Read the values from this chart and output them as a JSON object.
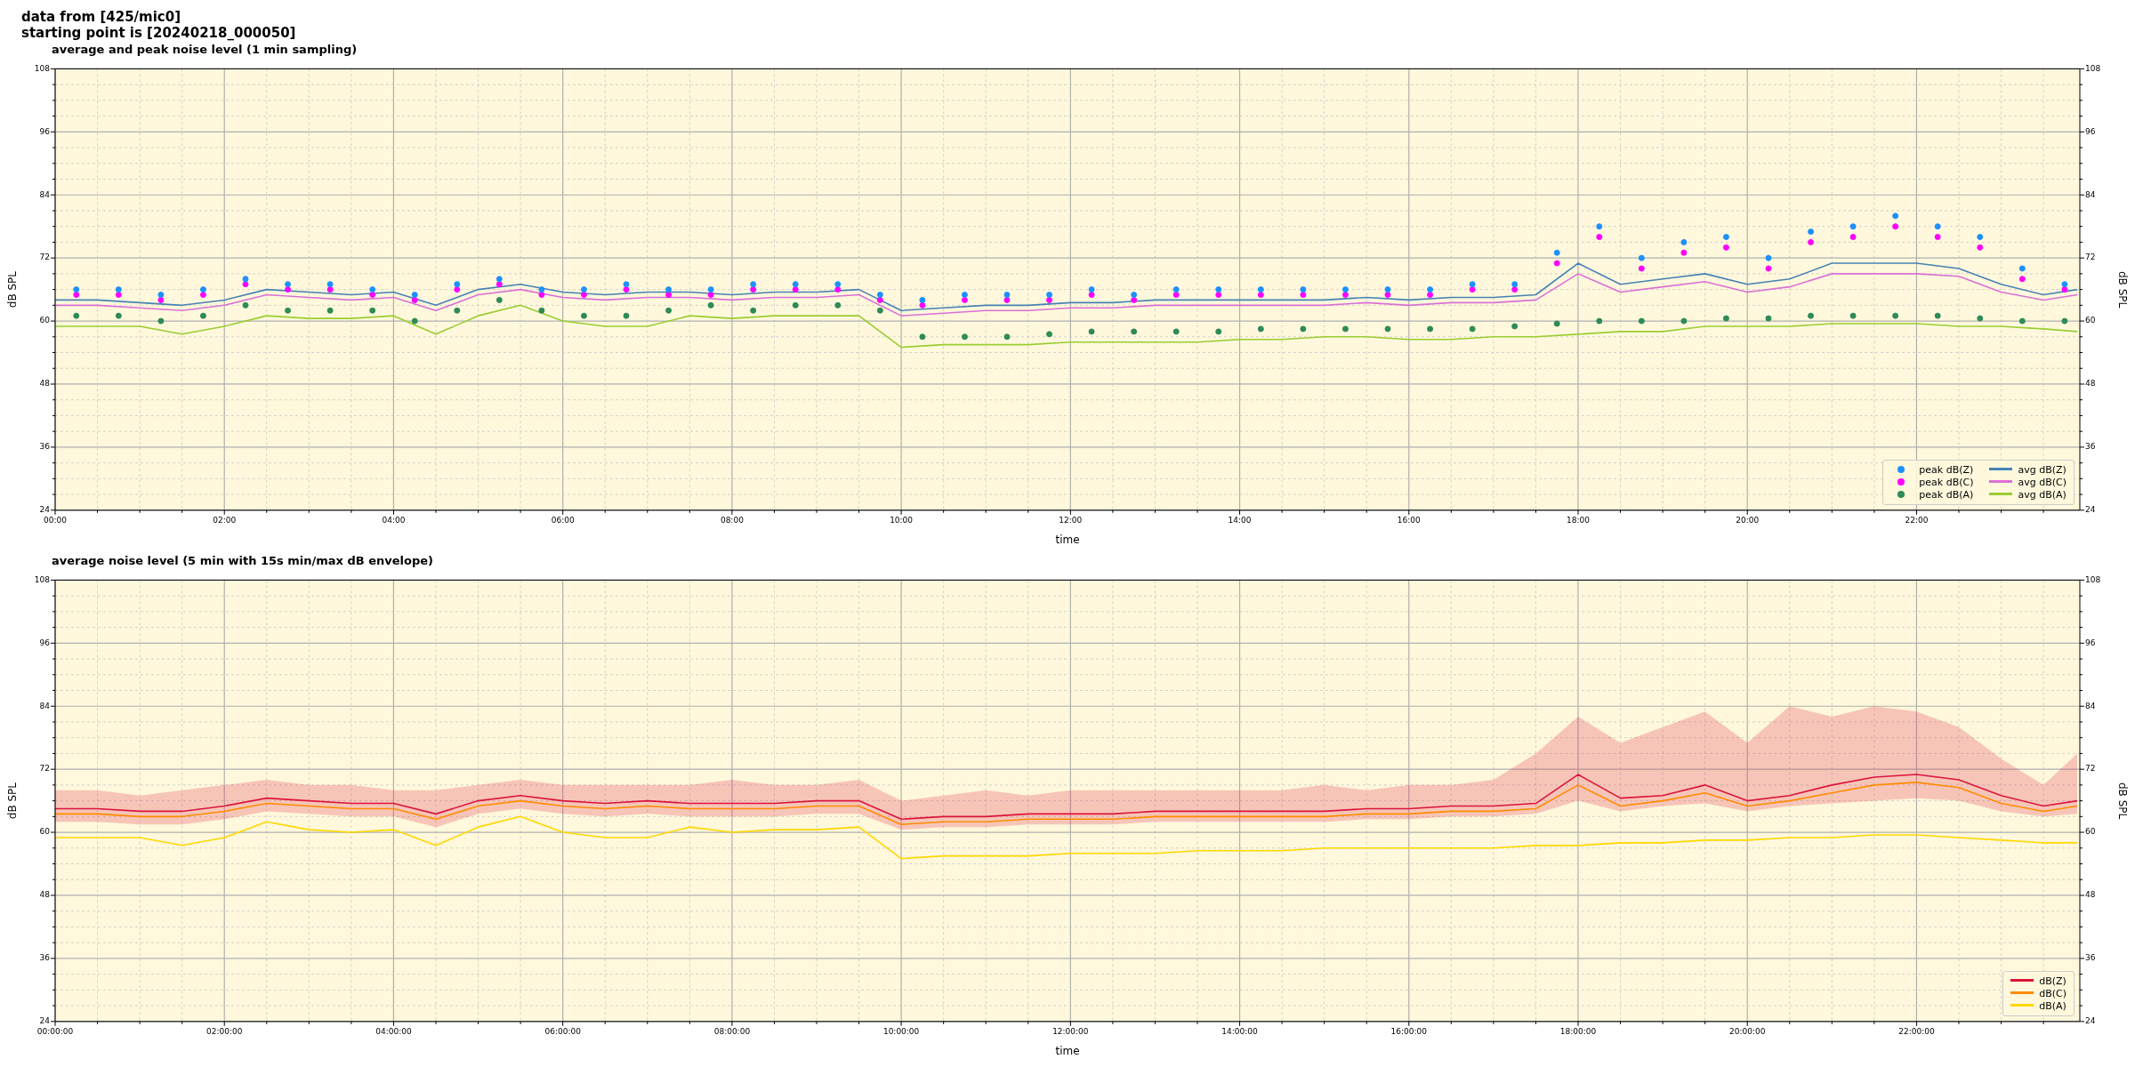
{
  "chart_data": [
    {
      "type": "scatter",
      "title": "average and peak noise level (1 min sampling)",
      "annotations": [
        "data from [425/mic0]",
        "starting point is [20240218_000050]"
      ],
      "xlabel": "time",
      "ylabel": "dB SPL",
      "y2label": "dB SPL",
      "xlim": [
        0,
        23.93
      ],
      "ylim": [
        24,
        108
      ],
      "y2lim": [
        24,
        108
      ],
      "xticks": [
        {
          "value": 0,
          "label": "00:00"
        },
        {
          "value": 0.5,
          "label": null
        },
        {
          "value": 1,
          "label": null
        },
        {
          "value": 1.5,
          "label": null
        },
        {
          "value": 2,
          "label": "02:00"
        },
        {
          "value": 2.5,
          "label": null
        },
        {
          "value": 3,
          "label": null
        },
        {
          "value": 3.5,
          "label": null
        },
        {
          "value": 4,
          "label": "04:00"
        },
        {
          "value": 4.5,
          "label": null
        },
        {
          "value": 5,
          "label": null
        },
        {
          "value": 5.5,
          "label": null
        },
        {
          "value": 6,
          "label": "06:00"
        },
        {
          "value": 6.5,
          "label": null
        },
        {
          "value": 7,
          "label": null
        },
        {
          "value": 7.5,
          "label": null
        },
        {
          "value": 8,
          "label": "08:00"
        },
        {
          "value": 8.5,
          "label": null
        },
        {
          "value": 9,
          "label": null
        },
        {
          "value": 9.5,
          "label": null
        },
        {
          "value": 10,
          "label": "10:00"
        },
        {
          "value": 10.5,
          "label": null
        },
        {
          "value": 11,
          "label": null
        },
        {
          "value": 11.5,
          "label": null
        },
        {
          "value": 12,
          "label": "12:00"
        },
        {
          "value": 12.5,
          "label": null
        },
        {
          "value": 13,
          "label": null
        },
        {
          "value": 13.5,
          "label": null
        },
        {
          "value": 14,
          "label": "14:00"
        },
        {
          "value": 14.5,
          "label": null
        },
        {
          "value": 15,
          "label": null
        },
        {
          "value": 15.5,
          "label": null
        },
        {
          "value": 16,
          "label": "16:00"
        },
        {
          "value": 16.5,
          "label": null
        },
        {
          "value": 17,
          "label": null
        },
        {
          "value": 17.5,
          "label": null
        },
        {
          "value": 18,
          "label": "18:00"
        },
        {
          "value": 18.5,
          "label": null
        },
        {
          "value": 19,
          "label": null
        },
        {
          "value": 19.5,
          "label": null
        },
        {
          "value": 20,
          "label": "20:00"
        },
        {
          "value": 20.5,
          "label": null
        },
        {
          "value": 21,
          "label": null
        },
        {
          "value": 21.5,
          "label": null
        },
        {
          "value": 22,
          "label": "22:00"
        },
        {
          "value": 22.5,
          "label": null
        },
        {
          "value": 23,
          "label": null
        },
        {
          "value": 23.5,
          "label": null
        }
      ],
      "yticks": [
        24,
        {
          "value": 27,
          "label": null
        },
        {
          "value": 30,
          "label": null
        },
        {
          "value": 33,
          "label": null
        },
        36,
        {
          "value": 39,
          "label": null
        },
        {
          "value": 42,
          "label": null
        },
        {
          "value": 45,
          "label": null
        },
        48,
        {
          "value": 51,
          "label": null
        },
        {
          "value": 54,
          "label": null
        },
        {
          "value": 57,
          "label": null
        },
        60,
        {
          "value": 63,
          "label": null
        },
        {
          "value": 66,
          "label": null
        },
        {
          "value": 69,
          "label": null
        },
        72,
        {
          "value": 75,
          "label": null
        },
        {
          "value": 78,
          "label": null
        },
        {
          "value": 81,
          "label": null
        },
        84,
        {
          "value": 87,
          "label": null
        },
        {
          "value": 90,
          "label": null
        },
        {
          "value": 93,
          "label": null
        },
        96,
        {
          "value": 99,
          "label": null
        },
        {
          "value": 102,
          "label": null
        },
        {
          "value": 105,
          "label": null
        },
        108
      ],
      "y2ticks": [
        24,
        {
          "value": 27,
          "label": null
        },
        {
          "value": 30,
          "label": null
        },
        {
          "value": 33,
          "label": null
        },
        36,
        {
          "value": 39,
          "label": null
        },
        {
          "value": 42,
          "label": null
        },
        {
          "value": 45,
          "label": null
        },
        48,
        {
          "value": 51,
          "label": null
        },
        {
          "value": 54,
          "label": null
        },
        {
          "value": 57,
          "label": null
        },
        60,
        {
          "value": 63,
          "label": null
        },
        {
          "value": 66,
          "label": null
        },
        {
          "value": 69,
          "label": null
        },
        72,
        {
          "value": 75,
          "label": null
        },
        {
          "value": 78,
          "label": null
        },
        {
          "value": 81,
          "label": null
        },
        84,
        {
          "value": 87,
          "label": null
        },
        {
          "value": 90,
          "label": null
        },
        {
          "value": 93,
          "label": null
        },
        96,
        {
          "value": 99,
          "label": null
        },
        {
          "value": 102,
          "label": null
        },
        {
          "value": 105,
          "label": null
        },
        108
      ],
      "grid": true,
      "legend": "bottom right",
      "x": [
        0,
        0.5,
        1,
        1.5,
        2,
        2.5,
        3,
        3.5,
        4,
        4.5,
        5,
        5.5,
        6,
        6.5,
        7,
        7.5,
        8,
        8.5,
        9,
        9.5,
        10,
        10.5,
        11,
        11.5,
        12,
        12.5,
        13,
        13.5,
        14,
        14.5,
        15,
        15.5,
        16,
        16.5,
        17,
        17.5,
        18,
        18.5,
        19,
        19.5,
        20,
        20.5,
        21,
        21.5,
        22,
        22.5,
        23,
        23.5,
        23.9
      ],
      "series": [
        {
          "name": "peak dB(Z)",
          "marker": "circle",
          "color": "#1e90ff",
          "x": [
            0.25,
            0.75,
            1.25,
            1.75,
            2.25,
            2.75,
            3.25,
            3.75,
            4.25,
            4.75,
            5.25,
            5.75,
            6.25,
            6.75,
            7.25,
            7.75,
            8.25,
            8.75,
            9.25,
            9.75,
            10.25,
            10.75,
            11.25,
            11.75,
            12.25,
            12.75,
            13.25,
            13.75,
            14.25,
            14.75,
            15.25,
            15.75,
            16.25,
            16.75,
            17.25,
            17.75,
            18.25,
            18.75,
            19.25,
            19.75,
            20.25,
            20.75,
            21.25,
            21.75,
            22.25,
            22.75,
            23.25,
            23.75
          ],
          "values": [
            66,
            66,
            65,
            66,
            68,
            67,
            67,
            66,
            65,
            67,
            68,
            66,
            66,
            67,
            66,
            66,
            67,
            67,
            67,
            65,
            64,
            65,
            65,
            65,
            66,
            65,
            66,
            66,
            66,
            66,
            66,
            66,
            66,
            67,
            67,
            73,
            78,
            72,
            75,
            76,
            72,
            77,
            78,
            80,
            78,
            76,
            70,
            67
          ]
        },
        {
          "name": "peak dB(C)",
          "marker": "circle",
          "color": "#ff00ff",
          "x": [
            0.25,
            0.75,
            1.25,
            1.75,
            2.25,
            2.75,
            3.25,
            3.75,
            4.25,
            4.75,
            5.25,
            5.75,
            6.25,
            6.75,
            7.25,
            7.75,
            8.25,
            8.75,
            9.25,
            9.75,
            10.25,
            10.75,
            11.25,
            11.75,
            12.25,
            12.75,
            13.25,
            13.75,
            14.25,
            14.75,
            15.25,
            15.75,
            16.25,
            16.75,
            17.25,
            17.75,
            18.25,
            18.75,
            19.25,
            19.75,
            20.25,
            20.75,
            21.25,
            21.75,
            22.25,
            22.75,
            23.25,
            23.75
          ],
          "values": [
            65,
            65,
            64,
            65,
            67,
            66,
            66,
            65,
            64,
            66,
            67,
            65,
            65,
            66,
            65,
            65,
            66,
            66,
            66,
            64,
            63,
            64,
            64,
            64,
            65,
            64,
            65,
            65,
            65,
            65,
            65,
            65,
            65,
            66,
            66,
            71,
            76,
            70,
            73,
            74,
            70,
            75,
            76,
            78,
            76,
            74,
            68,
            66
          ]
        },
        {
          "name": "peak dB(A)",
          "marker": "circle",
          "color": "#2e8b57",
          "x": [
            0.25,
            0.75,
            1.25,
            1.75,
            2.25,
            2.75,
            3.25,
            3.75,
            4.25,
            4.75,
            5.25,
            5.75,
            6.25,
            6.75,
            7.25,
            7.75,
            8.25,
            8.75,
            9.25,
            9.75,
            10.25,
            10.75,
            11.25,
            11.75,
            12.25,
            12.75,
            13.25,
            13.75,
            14.25,
            14.75,
            15.25,
            15.75,
            16.25,
            16.75,
            17.25,
            17.75,
            18.25,
            18.75,
            19.25,
            19.75,
            20.25,
            20.75,
            21.25,
            21.75,
            22.25,
            22.75,
            23.25,
            23.75
          ],
          "values": [
            61,
            61,
            60,
            61,
            63,
            62,
            62,
            62,
            60,
            62,
            64,
            62,
            61,
            61,
            62,
            63,
            62,
            63,
            63,
            62,
            57,
            57,
            57,
            57.5,
            58,
            58,
            58,
            58,
            58.5,
            58.5,
            58.5,
            58.5,
            58.5,
            58.5,
            59,
            59.5,
            60,
            60,
            60,
            60.5,
            60.5,
            61,
            61,
            61,
            61,
            60.5,
            60,
            60
          ]
        },
        {
          "name": "avg dB(Z)",
          "type": "line",
          "color": "#4682b4",
          "values": [
            64,
            64,
            63.5,
            63,
            64,
            66,
            65.5,
            65,
            65.5,
            63,
            66,
            67,
            65.5,
            65,
            65.5,
            65.5,
            65,
            65.5,
            65.5,
            66,
            62,
            62.5,
            63,
            63,
            63.5,
            63.5,
            64,
            64,
            64,
            64,
            64,
            64.5,
            64,
            64.5,
            64.5,
            65,
            71,
            67,
            68,
            69,
            67,
            68,
            71,
            71,
            71,
            70,
            67,
            65,
            66
          ]
        },
        {
          "name": "avg dB(C)",
          "type": "line",
          "color": "#da70d6",
          "values": [
            63,
            63,
            62.5,
            62,
            63,
            65,
            64.5,
            64,
            64.5,
            62,
            65,
            66,
            64.5,
            64,
            64.5,
            64.5,
            64,
            64.5,
            64.5,
            65,
            61,
            61.5,
            62,
            62,
            62.5,
            62.5,
            63,
            63,
            63,
            63,
            63,
            63.5,
            63,
            63.5,
            63.5,
            64,
            69,
            65.5,
            66.5,
            67.5,
            65.5,
            66.5,
            69,
            69,
            69,
            68.5,
            65.5,
            64,
            65
          ]
        },
        {
          "name": "avg dB(A)",
          "type": "line",
          "color": "#9acd32",
          "values": [
            59,
            59,
            59,
            57.5,
            59,
            61,
            60.5,
            60.5,
            61,
            57.5,
            61,
            63,
            60,
            59,
            59,
            61,
            60.5,
            61,
            61,
            61,
            55,
            55.5,
            55.5,
            55.5,
            56,
            56,
            56,
            56,
            56.5,
            56.5,
            57,
            57,
            56.5,
            56.5,
            57,
            57,
            57.5,
            58,
            58,
            59,
            59,
            59,
            59.5,
            59.5,
            59.5,
            59,
            59,
            58.5,
            58
          ]
        }
      ]
    },
    {
      "type": "line",
      "title": "average noise level (5 min with 15s min/max dB envelope)",
      "xlabel": "time",
      "ylabel": "dB SPL",
      "y2label": "dB SPL",
      "xlim": [
        0,
        23.93
      ],
      "ylim": [
        24,
        108
      ],
      "y2lim": [
        24,
        108
      ],
      "xticks": [
        {
          "value": 0,
          "label": "00:00:00"
        },
        {
          "value": 0.5,
          "label": null
        },
        {
          "value": 1,
          "label": null
        },
        {
          "value": 1.5,
          "label": null
        },
        {
          "value": 2,
          "label": "02:00:00"
        },
        {
          "value": 2.5,
          "label": null
        },
        {
          "value": 3,
          "label": null
        },
        {
          "value": 3.5,
          "label": null
        },
        {
          "value": 4,
          "label": "04:00:00"
        },
        {
          "value": 4.5,
          "label": null
        },
        {
          "value": 5,
          "label": null
        },
        {
          "value": 5.5,
          "label": null
        },
        {
          "value": 6,
          "label": "06:00:00"
        },
        {
          "value": 6.5,
          "label": null
        },
        {
          "value": 7,
          "label": null
        },
        {
          "value": 7.5,
          "label": null
        },
        {
          "value": 8,
          "label": "08:00:00"
        },
        {
          "value": 8.5,
          "label": null
        },
        {
          "value": 9,
          "label": null
        },
        {
          "value": 9.5,
          "label": null
        },
        {
          "value": 10,
          "label": "10:00:00"
        },
        {
          "value": 10.5,
          "label": null
        },
        {
          "value": 11,
          "label": null
        },
        {
          "value": 11.5,
          "label": null
        },
        {
          "value": 12,
          "label": "12:00:00"
        },
        {
          "value": 12.5,
          "label": null
        },
        {
          "value": 13,
          "label": null
        },
        {
          "value": 13.5,
          "label": null
        },
        {
          "value": 14,
          "label": "14:00:00"
        },
        {
          "value": 14.5,
          "label": null
        },
        {
          "value": 15,
          "label": null
        },
        {
          "value": 15.5,
          "label": null
        },
        {
          "value": 16,
          "label": "16:00:00"
        },
        {
          "value": 16.5,
          "label": null
        },
        {
          "value": 17,
          "label": null
        },
        {
          "value": 17.5,
          "label": null
        },
        {
          "value": 18,
          "label": "18:00:00"
        },
        {
          "value": 18.5,
          "label": null
        },
        {
          "value": 19,
          "label": null
        },
        {
          "value": 19.5,
          "label": null
        },
        {
          "value": 20,
          "label": "20:00:00"
        },
        {
          "value": 20.5,
          "label": null
        },
        {
          "value": 21,
          "label": null
        },
        {
          "value": 21.5,
          "label": null
        },
        {
          "value": 22,
          "label": "22:00:00"
        },
        {
          "value": 22.5,
          "label": null
        },
        {
          "value": 23,
          "label": null
        },
        {
          "value": 23.5,
          "label": null
        }
      ],
      "yticks": [
        24,
        {
          "value": 27,
          "label": null
        },
        {
          "value": 30,
          "label": null
        },
        {
          "value": 33,
          "label": null
        },
        36,
        {
          "value": 39,
          "label": null
        },
        {
          "value": 42,
          "label": null
        },
        {
          "value": 45,
          "label": null
        },
        48,
        {
          "value": 51,
          "label": null
        },
        {
          "value": 54,
          "label": null
        },
        {
          "value": 57,
          "label": null
        },
        60,
        {
          "value": 63,
          "label": null
        },
        {
          "value": 66,
          "label": null
        },
        {
          "value": 69,
          "label": null
        },
        72,
        {
          "value": 75,
          "label": null
        },
        {
          "value": 78,
          "label": null
        },
        {
          "value": 81,
          "label": null
        },
        84,
        {
          "value": 87,
          "label": null
        },
        {
          "value": 90,
          "label": null
        },
        {
          "value": 93,
          "label": null
        },
        96,
        {
          "value": 99,
          "label": null
        },
        {
          "value": 102,
          "label": null
        },
        {
          "value": 105,
          "label": null
        },
        108
      ],
      "y2ticks": [
        24,
        {
          "value": 27,
          "label": null
        },
        {
          "value": 30,
          "label": null
        },
        {
          "value": 33,
          "label": null
        },
        36,
        {
          "value": 39,
          "label": null
        },
        {
          "value": 42,
          "label": null
        },
        {
          "value": 45,
          "label": null
        },
        48,
        {
          "value": 51,
          "label": null
        },
        {
          "value": 54,
          "label": null
        },
        {
          "value": 57,
          "label": null
        },
        60,
        {
          "value": 63,
          "label": null
        },
        {
          "value": 66,
          "label": null
        },
        {
          "value": 69,
          "label": null
        },
        72,
        {
          "value": 75,
          "label": null
        },
        {
          "value": 78,
          "label": null
        },
        {
          "value": 81,
          "label": null
        },
        84,
        {
          "value": 87,
          "label": null
        },
        {
          "value": 90,
          "label": null
        },
        {
          "value": 93,
          "label": null
        },
        96,
        {
          "value": 99,
          "label": null
        },
        {
          "value": 102,
          "label": null
        },
        {
          "value": 105,
          "label": null
        },
        108
      ],
      "grid": true,
      "legend": "bottom right",
      "x": [
        0,
        0.5,
        1,
        1.5,
        2,
        2.5,
        3,
        3.5,
        4,
        4.5,
        5,
        5.5,
        6,
        6.5,
        7,
        7.5,
        8,
        8.5,
        9,
        9.5,
        10,
        10.5,
        11,
        11.5,
        12,
        12.5,
        13,
        13.5,
        14,
        14.5,
        15,
        15.5,
        16,
        16.5,
        17,
        17.5,
        18,
        18.5,
        19,
        19.5,
        20,
        20.5,
        21,
        21.5,
        22,
        22.5,
        23,
        23.5,
        23.9
      ],
      "series": [
        {
          "name": "dB(Z)",
          "color": "#dc143c",
          "values": [
            64.5,
            64.5,
            64,
            64,
            65,
            66.5,
            66,
            65.5,
            65.5,
            63.5,
            66,
            67,
            66,
            65.5,
            66,
            65.5,
            65.5,
            65.5,
            66,
            66,
            62.5,
            63,
            63,
            63.5,
            63.5,
            63.5,
            64,
            64,
            64,
            64,
            64,
            64.5,
            64.5,
            65,
            65,
            65.5,
            71,
            66.5,
            67,
            69,
            66,
            67,
            69,
            70.5,
            71,
            70,
            67,
            65,
            66
          ],
          "lower": [
            62,
            62,
            61.5,
            61.5,
            62.5,
            64,
            63.5,
            63,
            63,
            61,
            63.5,
            64.5,
            63.5,
            63,
            63.5,
            63,
            63,
            63,
            63.5,
            63.5,
            60.5,
            61,
            61,
            61.5,
            61.5,
            61.5,
            62,
            62,
            62,
            62,
            62,
            62.5,
            62.5,
            63,
            63,
            63.5,
            66,
            64,
            65,
            65.5,
            64,
            65,
            65.5,
            66,
            66.5,
            66,
            64,
            63,
            63.5
          ],
          "upper": [
            68,
            68,
            67,
            68,
            69,
            70,
            69,
            69,
            68,
            68,
            69,
            70,
            69,
            69,
            69,
            69,
            70,
            69,
            69,
            70,
            66,
            67,
            68,
            67,
            68,
            68,
            68,
            68,
            68,
            68,
            69,
            68,
            69,
            69,
            70,
            75,
            82,
            77,
            80,
            83,
            77,
            84,
            82,
            84,
            83,
            80,
            74,
            69,
            75
          ]
        },
        {
          "name": "dB(C)",
          "color": "#ff8c00",
          "values": [
            63.5,
            63.5,
            63,
            63,
            64,
            65.5,
            65,
            64.5,
            64.5,
            62.5,
            65,
            66,
            65,
            64.5,
            65,
            64.5,
            64.5,
            64.5,
            65,
            65,
            61.5,
            62,
            62,
            62.5,
            62.5,
            62.5,
            63,
            63,
            63,
            63,
            63,
            63.5,
            63.5,
            64,
            64,
            64.5,
            69,
            65,
            66,
            67.5,
            65,
            66,
            67.5,
            69,
            69.5,
            68.5,
            65.5,
            64,
            65
          ]
        },
        {
          "name": "dB(A)",
          "color": "#ffd700",
          "values": [
            59,
            59,
            59,
            57.5,
            59,
            62,
            60.5,
            60,
            60.5,
            57.5,
            61,
            63,
            60,
            59,
            59,
            61,
            60,
            60.5,
            60.5,
            61,
            55,
            55.5,
            55.5,
            55.5,
            56,
            56,
            56,
            56.5,
            56.5,
            56.5,
            57,
            57,
            57,
            57,
            57,
            57.5,
            57.5,
            58,
            58,
            58.5,
            58.5,
            59,
            59,
            59.5,
            59.5,
            59,
            58.5,
            58,
            58
          ]
        }
      ]
    }
  ]
}
